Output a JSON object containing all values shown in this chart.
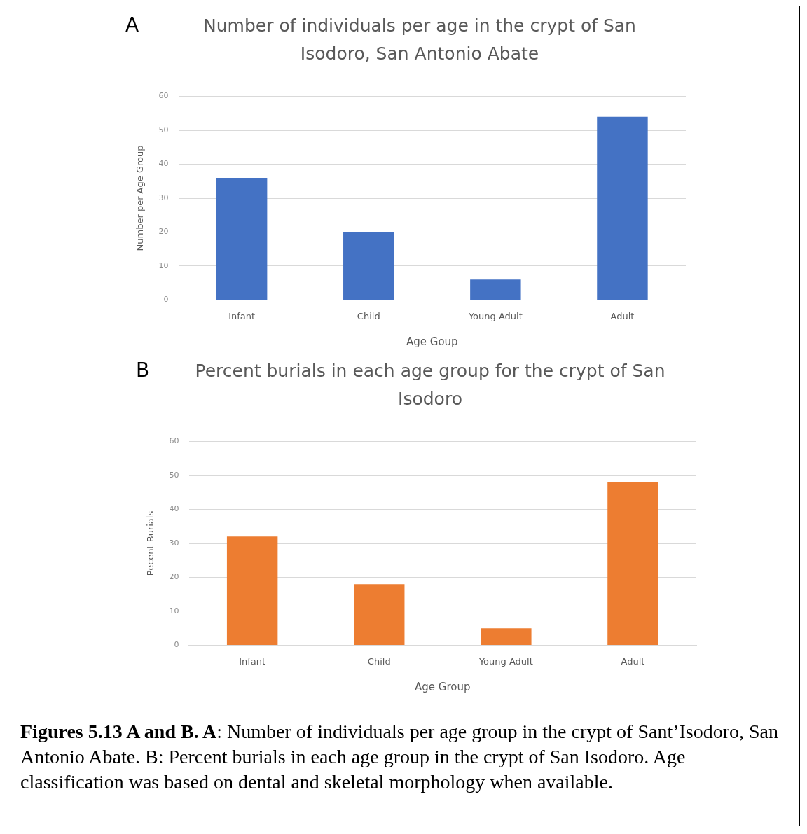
{
  "chart_data": [
    {
      "type": "bar",
      "title": "Number of individuals per age in the crypt of San Isodoro, San Antonio Abate",
      "xlabel": "Age Goup",
      "ylabel": "Number per Age Group",
      "categories": [
        "Infant",
        "Child",
        "Young Adult",
        "Adult"
      ],
      "values": [
        36,
        20,
        6,
        54
      ],
      "color": "#4472c4",
      "ylim": [
        0,
        60
      ],
      "yticks": [
        0,
        10,
        20,
        30,
        40,
        50,
        60
      ],
      "grid": "y",
      "annotations": [
        "A"
      ]
    },
    {
      "type": "bar",
      "title": "Percent burials in each age group for the crypt of San Isodoro",
      "xlabel": "Age Group",
      "ylabel": "Pecent Burials",
      "categories": [
        "Infant",
        "Child",
        "Young Adult",
        "Adult"
      ],
      "values": [
        32,
        18,
        5,
        48
      ],
      "color": "#ed7d31",
      "ylim": [
        0,
        60
      ],
      "yticks": [
        0,
        10,
        20,
        30,
        40,
        50,
        60
      ],
      "grid": "y",
      "annotations": [
        "B",
        "Figures 5.13 A and B. A",
        ": Number of individuals per age group in the crypt of Sant’Isodoro, San Antonio Abate. B: Percent burials in each age group in the crypt of San Isodoro. Age classification was based on dental and skeletal morphology when available."
      ]
    }
  ]
}
